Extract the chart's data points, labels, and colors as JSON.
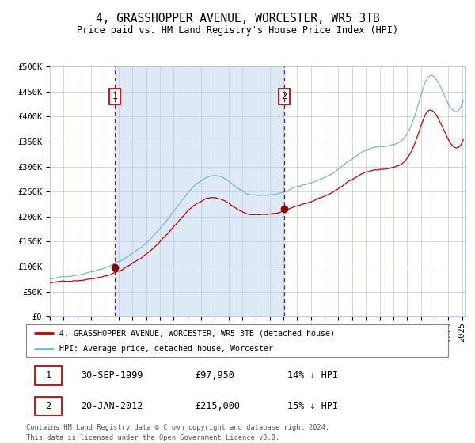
{
  "title": "4, GRASSHOPPER AVENUE, WORCESTER, WR5 3TB",
  "subtitle": "Price paid vs. HM Land Registry's House Price Index (HPI)",
  "ylim": [
    0,
    500000
  ],
  "yticks": [
    0,
    50000,
    100000,
    150000,
    200000,
    250000,
    300000,
    350000,
    400000,
    450000,
    500000
  ],
  "ytick_labels": [
    "£0",
    "£50K",
    "£100K",
    "£150K",
    "£200K",
    "£250K",
    "£300K",
    "£350K",
    "£400K",
    "£450K",
    "£500K"
  ],
  "hpi_color": "#7ab4d8",
  "price_color": "#cc0000",
  "vline_color": "#cc0000",
  "bg_color": "#ddeaf5",
  "sale1_date": "1999-09-30",
  "sale1_price": 97950,
  "sale2_date": "2012-01-20",
  "sale2_price": 215000,
  "legend_line1": "4, GRASSHOPPER AVENUE, WORCESTER, WR5 3TB (detached house)",
  "legend_line2": "HPI: Average price, detached house, Worcester",
  "table_row1": [
    "1",
    "30-SEP-1999",
    "£97,950",
    "14% ↓ HPI"
  ],
  "table_row2": [
    "2",
    "20-JAN-2012",
    "£215,000",
    "15% ↓ HPI"
  ],
  "footer1": "Contains HM Land Registry data © Crown copyright and database right 2024.",
  "footer2": "This data is licensed under the Open Government Licence v3.0.",
  "title_fontsize": 10.5,
  "subtitle_fontsize": 8.5,
  "tick_fontsize": 7.5
}
